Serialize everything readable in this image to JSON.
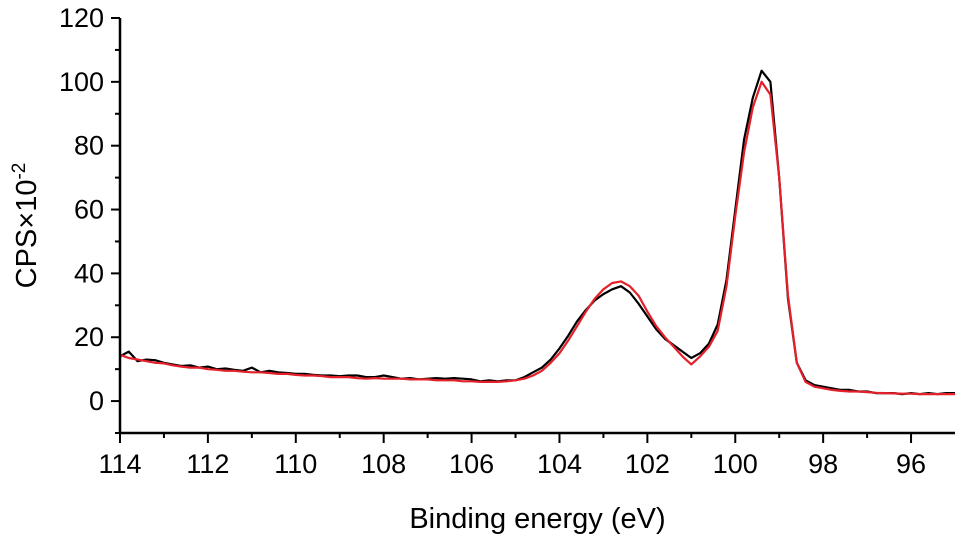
{
  "chart_data": {
    "type": "line",
    "xlabel": "Binding energy (eV)",
    "ylabel_main": "CPS×10",
    "ylabel_sup": "-2",
    "xlim": [
      114,
      95
    ],
    "ylim": [
      -10,
      120
    ],
    "x_ticks": [
      114,
      112,
      110,
      108,
      106,
      104,
      102,
      100,
      98,
      96
    ],
    "x_tick_labels": [
      "114",
      "112",
      "110",
      "108",
      "106",
      "104",
      "102",
      "100",
      "98",
      "96"
    ],
    "y_ticks": [
      0,
      20,
      40,
      60,
      80,
      100,
      120
    ],
    "y_tick_labels": [
      "0",
      "20",
      "40",
      "60",
      "80",
      "100",
      "120"
    ],
    "grid": false,
    "series": [
      {
        "color": "#000000",
        "x": [
          114,
          113.8,
          113.6,
          113.4,
          113.2,
          113,
          112.8,
          112.6,
          112.4,
          112.2,
          112,
          111.8,
          111.6,
          111.4,
          111.2,
          111,
          110.8,
          110.6,
          110.4,
          110.2,
          110,
          109.8,
          109.6,
          109.4,
          109.2,
          109,
          108.8,
          108.6,
          108.4,
          108.2,
          108,
          107.8,
          107.6,
          107.4,
          107.2,
          107,
          106.8,
          106.6,
          106.4,
          106.2,
          106,
          105.8,
          105.6,
          105.4,
          105.2,
          105,
          104.8,
          104.6,
          104.4,
          104.2,
          104,
          103.8,
          103.6,
          103.4,
          103.2,
          103,
          102.8,
          102.6,
          102.4,
          102.2,
          102,
          101.8,
          101.6,
          101.4,
          101.2,
          101,
          100.8,
          100.6,
          100.4,
          100.2,
          100,
          99.8,
          99.6,
          99.4,
          99.2,
          99,
          98.8,
          98.6,
          98.4,
          98.2,
          98,
          97.8,
          97.6,
          97.4,
          97.2,
          97,
          96.8,
          96.6,
          96.4,
          96.2,
          96,
          95.8,
          95.6,
          95.4,
          95.2,
          95
        ],
        "y": [
          14,
          15.5,
          12.5,
          13,
          12.8,
          12,
          11.5,
          11,
          11.2,
          10.5,
          10.8,
          10,
          10.2,
          9.8,
          9.5,
          10.5,
          9,
          9.5,
          9,
          8.8,
          8.5,
          8.5,
          8.2,
          8,
          8,
          7.8,
          8,
          8,
          7.5,
          7.5,
          8,
          7.5,
          7,
          7.2,
          6.8,
          7,
          7.2,
          7,
          7.2,
          7,
          6.8,
          6.2,
          6.5,
          6.2,
          6.5,
          6.5,
          7.5,
          9,
          10.5,
          13,
          16.5,
          20.5,
          25,
          28.5,
          31.5,
          33.5,
          35,
          36,
          34,
          30.5,
          26.5,
          22.5,
          19.5,
          17.5,
          15.5,
          13.5,
          15,
          18,
          24,
          38,
          60,
          82,
          95,
          103.5,
          100,
          70,
          32,
          12,
          6.5,
          5,
          4.5,
          4,
          3.5,
          3.5,
          3,
          3,
          2.5,
          2.5,
          2.5,
          2.2,
          2.5,
          2.2,
          2.5,
          2.2,
          2.5,
          2.5
        ]
      },
      {
        "color": "#e4202a",
        "x": [
          114,
          113.8,
          113.6,
          113.4,
          113.2,
          113,
          112.8,
          112.6,
          112.4,
          112.2,
          112,
          111.8,
          111.6,
          111.4,
          111.2,
          111,
          110.8,
          110.6,
          110.4,
          110.2,
          110,
          109.8,
          109.6,
          109.4,
          109.2,
          109,
          108.8,
          108.6,
          108.4,
          108.2,
          108,
          107.8,
          107.6,
          107.4,
          107.2,
          107,
          106.8,
          106.6,
          106.4,
          106.2,
          106,
          105.8,
          105.6,
          105.4,
          105.2,
          105,
          104.8,
          104.6,
          104.4,
          104.2,
          104,
          103.8,
          103.6,
          103.4,
          103.2,
          103,
          102.8,
          102.6,
          102.4,
          102.2,
          102,
          101.8,
          101.6,
          101.4,
          101.2,
          101,
          100.8,
          100.6,
          100.4,
          100.2,
          100,
          99.8,
          99.6,
          99.4,
          99.2,
          99,
          98.8,
          98.6,
          98.4,
          98.2,
          98,
          97.8,
          97.6,
          97.4,
          97.2,
          97,
          96.8,
          96.6,
          96.4,
          96.2,
          96,
          95.8,
          95.6,
          95.4,
          95.2,
          95
        ],
        "y": [
          14.5,
          13.5,
          13,
          12.5,
          12,
          11.8,
          11.2,
          10.8,
          10.5,
          10.5,
          10,
          9.8,
          9.5,
          9.5,
          9.2,
          9,
          9,
          8.8,
          8.5,
          8.5,
          8.2,
          8,
          8,
          7.8,
          7.5,
          7.5,
          7.5,
          7.2,
          7,
          7.2,
          7,
          7,
          7,
          6.8,
          6.8,
          6.8,
          6.5,
          6.5,
          6.5,
          6.2,
          6.2,
          6,
          6,
          6,
          6.2,
          6.5,
          7,
          8,
          9.5,
          12,
          15,
          19,
          23.5,
          28,
          32,
          35,
          37,
          37.5,
          36,
          33,
          28,
          23.5,
          20,
          17,
          14,
          11.5,
          14,
          17,
          22,
          36,
          58,
          78,
          92,
          100,
          96,
          70,
          33,
          12,
          6,
          4.5,
          4,
          3.5,
          3.2,
          3,
          3,
          2.8,
          2.6,
          2.5,
          2.4,
          2.3,
          2.3,
          2.2,
          2.2,
          2.2,
          2.2,
          2.2
        ]
      }
    ]
  }
}
